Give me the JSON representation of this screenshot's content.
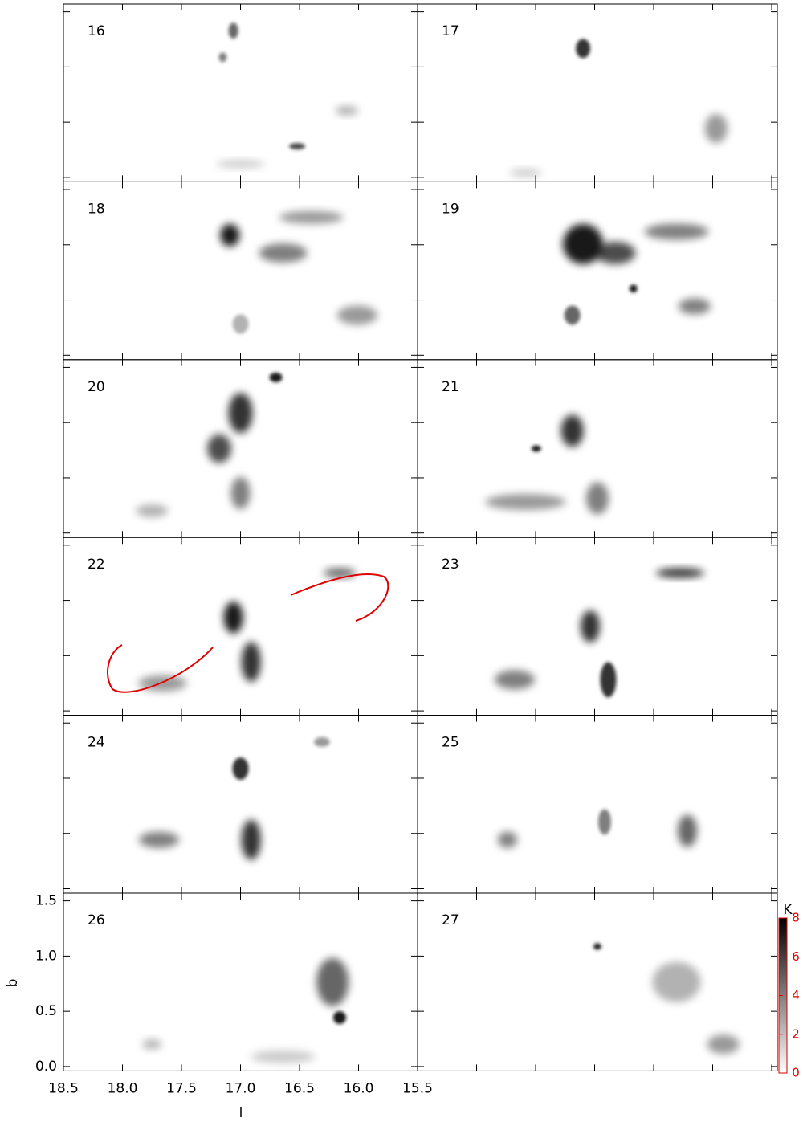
{
  "chart_data": {
    "type": "image-grid",
    "panels": [
      16,
      17,
      18,
      19,
      20,
      21,
      22,
      23,
      24,
      25,
      26,
      27
    ],
    "xlabel": "l",
    "ylabel": "b",
    "xlim": [
      18.5,
      15.5
    ],
    "xticks": [
      18.5,
      {
        "value": 18,
        "label": "18.0"
      },
      17.5,
      {
        "value": 17,
        "label": "17.0"
      },
      16.5,
      {
        "value": 16,
        "label": "16.0"
      },
      15.5
    ],
    "ylim": [
      -0.04,
      1.57
    ],
    "yticks": [
      {
        "value": 0,
        "label": "0.0"
      },
      0.5,
      {
        "value": 1,
        "label": "1.0"
      },
      1.5
    ],
    "colorbar": {
      "label": "K",
      "lim": [
        0,
        8
      ],
      "ticks": [
        0,
        2,
        4,
        6,
        8
      ],
      "color": "#e00000"
    }
  }
}
